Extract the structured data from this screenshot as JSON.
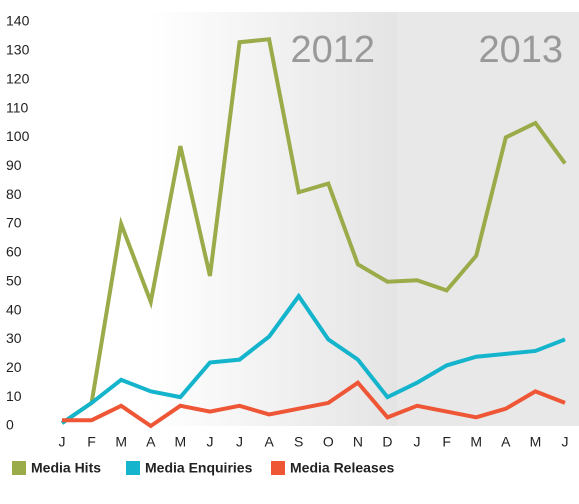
{
  "chart_data": {
    "type": "line",
    "categories": [
      "J",
      "F",
      "M",
      "A",
      "M",
      "J",
      "J",
      "A",
      "S",
      "O",
      "N",
      "D",
      "J",
      "F",
      "M",
      "A",
      "M",
      "J"
    ],
    "series": [
      {
        "name": "Media Hits",
        "color": "#9aab4a",
        "values": [
          1,
          8,
          70,
          43,
          97,
          52,
          133,
          134,
          81,
          84,
          56,
          50,
          50.5,
          47,
          59,
          100,
          105,
          91
        ]
      },
      {
        "name": "Media Enquiries",
        "color": "#14b4cc",
        "values": [
          1,
          8,
          16,
          12,
          10,
          22,
          23,
          31,
          45,
          30,
          23,
          10,
          15,
          21,
          24,
          25,
          26,
          30
        ]
      },
      {
        "name": "Media Releases",
        "color": "#ee5636",
        "values": [
          2,
          2,
          7,
          0,
          7,
          5,
          7,
          4,
          6,
          8,
          15,
          3,
          7,
          5,
          3,
          6,
          12,
          8
        ]
      }
    ],
    "annotations": [
      "2012",
      "2013"
    ],
    "ylim": [
      0,
      140
    ],
    "yticks": [
      0,
      10,
      20,
      30,
      40,
      50,
      60,
      70,
      80,
      90,
      100,
      110,
      120,
      130,
      140
    ],
    "grid": false,
    "legend": "bottom"
  }
}
